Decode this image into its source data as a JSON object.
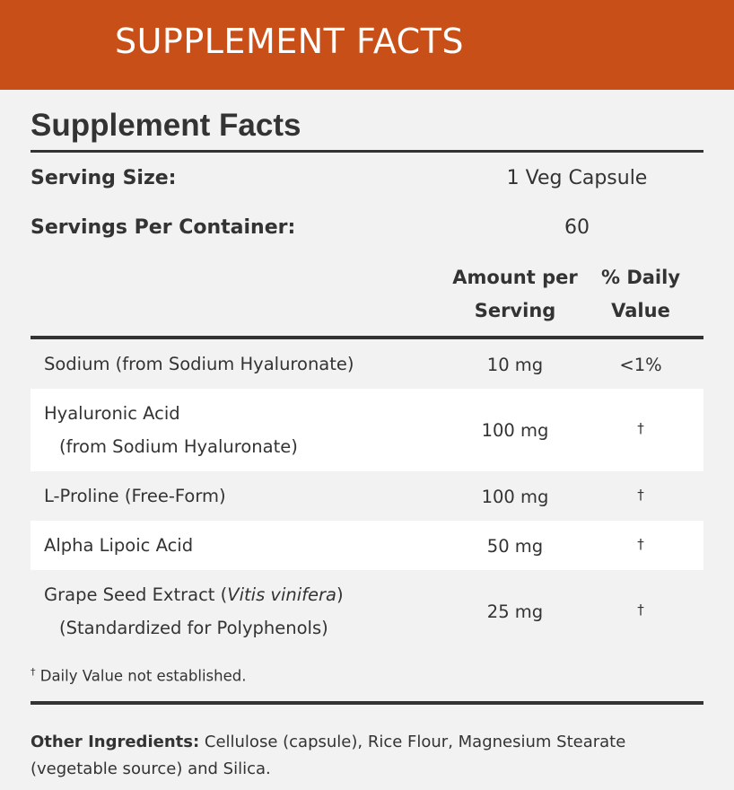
{
  "banner": {
    "title": "SUPPLEMENT FACTS"
  },
  "facts": {
    "title": "Supplement Facts",
    "serving_size_label": "Serving Size:",
    "serving_size_value": "1 Veg Capsule",
    "servings_label": "Servings Per Container:",
    "servings_value": "60",
    "col_amount_line1": "Amount per",
    "col_amount_line2": "Serving",
    "col_dv_line1": "% Daily",
    "col_dv_line2": "Value",
    "rows": [
      {
        "name": "Sodium (from Sodium Hyaluronate)",
        "sub": "",
        "amount": "10 mg",
        "dv": "<1%"
      },
      {
        "name": "Hyaluronic Acid",
        "sub": "(from Sodium Hyaluronate)",
        "amount": "100 mg",
        "dv": "†"
      },
      {
        "name": "L-Proline (Free-Form)",
        "sub": "",
        "amount": "100 mg",
        "dv": "†"
      },
      {
        "name": "Alpha Lipoic Acid",
        "sub": "",
        "amount": "50 mg",
        "dv": "†"
      },
      {
        "name_prefix": "Grape Seed Extract (",
        "name_italic": "Vitis vinifera",
        "name_suffix": ")",
        "sub": "(Standardized for Polyphenols)",
        "amount": "25 mg",
        "dv": "†"
      }
    ],
    "footnote_mark": "†",
    "footnote_text": " Daily Value not established.",
    "other_label": "Other Ingredients:",
    "other_text": "  Cellulose (capsule), Rice Flour, Magnesium Stearate (vegetable source) and Silica."
  }
}
